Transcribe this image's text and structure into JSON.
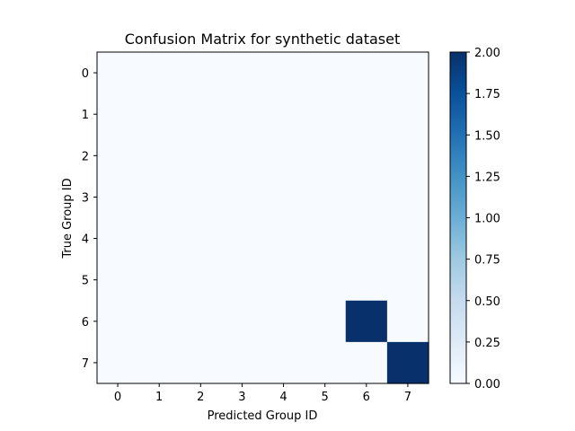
{
  "chart_data": {
    "type": "heatmap",
    "title": "Confusion Matrix for synthetic dataset",
    "xlabel": "Predicted Group ID",
    "ylabel": "True Group ID",
    "x_categories": [
      "0",
      "1",
      "2",
      "3",
      "4",
      "5",
      "6",
      "7"
    ],
    "y_categories": [
      "0",
      "1",
      "2",
      "3",
      "4",
      "5",
      "6",
      "7"
    ],
    "values": [
      [
        0,
        0,
        0,
        0,
        0,
        0,
        0,
        0
      ],
      [
        0,
        0,
        0,
        0,
        0,
        0,
        0,
        0
      ],
      [
        0,
        0,
        0,
        0,
        0,
        0,
        0,
        0
      ],
      [
        0,
        0,
        0,
        0,
        0,
        0,
        0,
        0
      ],
      [
        0,
        0,
        0,
        0,
        0,
        0,
        0,
        0
      ],
      [
        0,
        0,
        0,
        0,
        0,
        0,
        0,
        0
      ],
      [
        0,
        0,
        0,
        0,
        0,
        0,
        2,
        0
      ],
      [
        0,
        0,
        0,
        0,
        0,
        0,
        0,
        2
      ]
    ],
    "colormap": "Blues",
    "color_min": "#f7fbff",
    "color_max": "#08306b",
    "vmin": 0,
    "vmax": 2,
    "colorbar_ticks": [
      "0.00",
      "0.25",
      "0.50",
      "0.75",
      "1.00",
      "1.25",
      "1.50",
      "1.75",
      "2.00"
    ],
    "grid": false
  }
}
